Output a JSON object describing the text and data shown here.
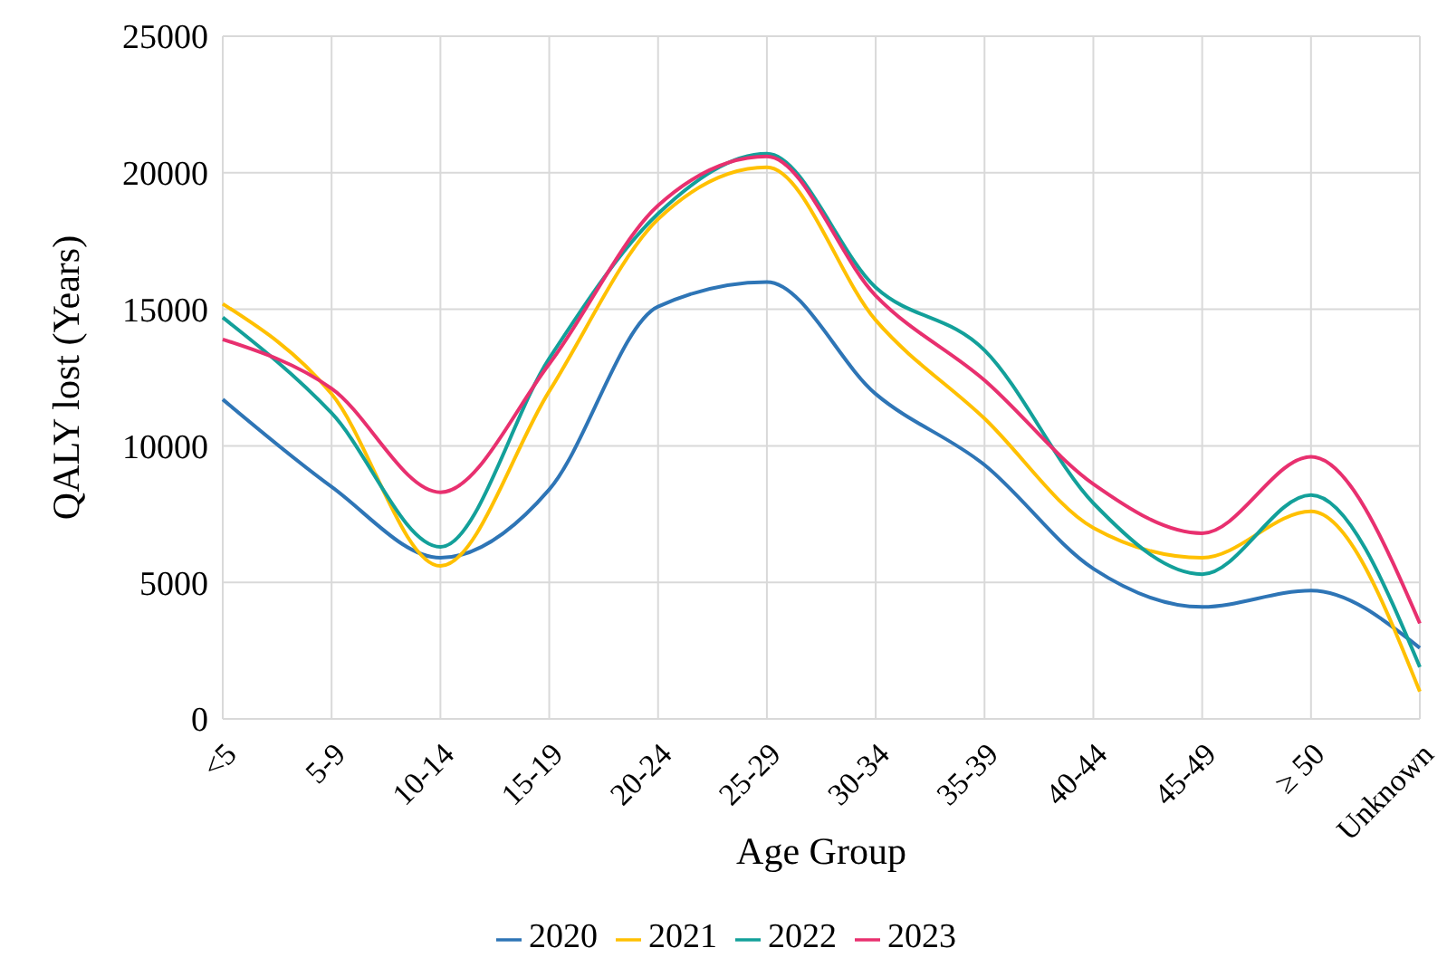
{
  "chart_data": {
    "type": "line",
    "xlabel": "Age Group",
    "ylabel": "QALY lost (Years)",
    "categories": [
      "<5",
      "5-9",
      "10-14",
      "15-19",
      "20-24",
      "25-29",
      "30-34",
      "35-39",
      "40-44",
      "45-49",
      "≥ 50",
      "Unknown"
    ],
    "series": [
      {
        "name": "2020",
        "color": "#2e75b6",
        "values": [
          11700,
          8500,
          5900,
          8400,
          15100,
          16000,
          11900,
          9300,
          5500,
          4100,
          4700,
          2600
        ]
      },
      {
        "name": "2021",
        "color": "#ffc000",
        "values": [
          15200,
          11900,
          5600,
          12000,
          18300,
          20200,
          14600,
          11000,
          7000,
          5900,
          7600,
          1000
        ]
      },
      {
        "name": "2022",
        "color": "#13a09a",
        "values": [
          14700,
          11200,
          6300,
          13200,
          18500,
          20700,
          15800,
          13500,
          7900,
          5300,
          8200,
          1900
        ]
      },
      {
        "name": "2023",
        "color": "#e8306f",
        "values": [
          13900,
          12100,
          8300,
          13000,
          18800,
          20600,
          15500,
          12400,
          8600,
          6800,
          9600,
          3500
        ]
      }
    ],
    "ylim": [
      0,
      25000
    ],
    "yticks": [
      0,
      5000,
      10000,
      15000,
      20000,
      25000
    ],
    "grid": true,
    "legend": "bottom",
    "marker": "none",
    "line_style": "solid"
  }
}
